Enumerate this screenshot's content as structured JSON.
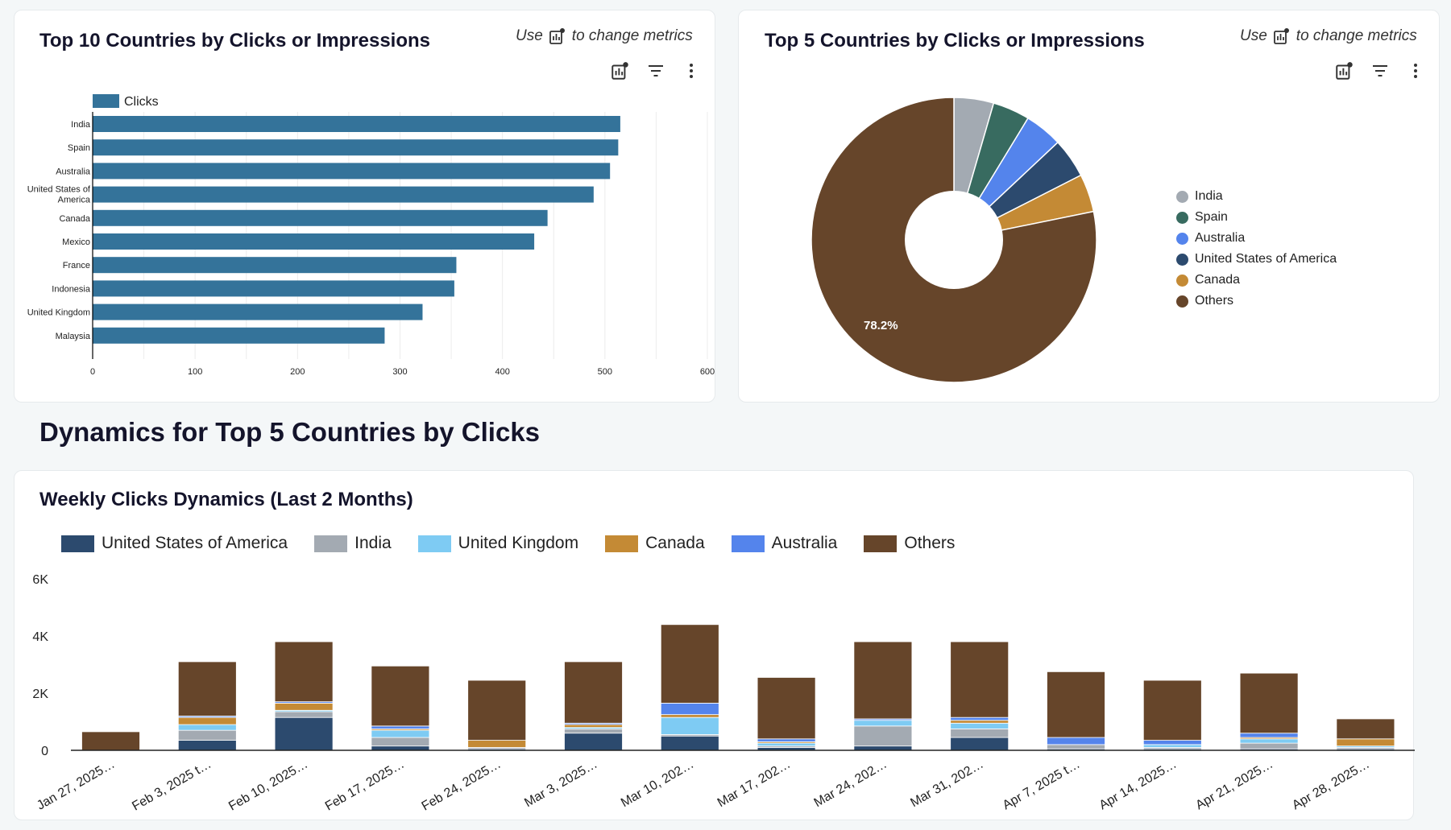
{
  "top10": {
    "title": "Top 10 Countries by Clicks or Impressions",
    "hint_use": "Use",
    "hint_rest": "to change metrics",
    "legend_label": "Clicks",
    "color": "#34739a"
  },
  "top5": {
    "title": "Top 5 Countries by Clicks or Impressions",
    "hint_use": "Use",
    "hint_rest": "to change metrics",
    "others_label": "78.2%",
    "legend": [
      {
        "label": "India",
        "color": "#a3aab2"
      },
      {
        "label": "Spain",
        "color": "#386b60"
      },
      {
        "label": "Australia",
        "color": "#5484ec"
      },
      {
        "label": "United States of America",
        "color": "#2c4a6e"
      },
      {
        "label": "Canada",
        "color": "#c48a35"
      },
      {
        "label": "Others",
        "color": "#66452a"
      }
    ]
  },
  "section_title": "Dynamics for Top 5 Countries by Clicks",
  "weekly": {
    "title": "Weekly Clicks Dynamics (Last 2 Months)",
    "legend": [
      {
        "label": "United States of America",
        "color": "#2c4a6e"
      },
      {
        "label": "India",
        "color": "#a3aab2"
      },
      {
        "label": "United Kingdom",
        "color": "#7ecbf3"
      },
      {
        "label": "Canada",
        "color": "#c48a35"
      },
      {
        "label": "Australia",
        "color": "#5484ec"
      },
      {
        "label": "Others",
        "color": "#66452a"
      }
    ]
  },
  "chart_data": [
    {
      "type": "bar",
      "orientation": "horizontal",
      "title": "Top 10 Countries by Clicks or Impressions",
      "categories": [
        "India",
        "Spain",
        "Australia",
        "United States of America",
        "Canada",
        "Mexico",
        "France",
        "Indonesia",
        "United Kingdom",
        "Malaysia"
      ],
      "category_labels": [
        [
          "India"
        ],
        [
          "Spain"
        ],
        [
          "Australia"
        ],
        [
          "United States of",
          "America"
        ],
        [
          "Canada"
        ],
        [
          "Mexico"
        ],
        [
          "France"
        ],
        [
          "Indonesia"
        ],
        [
          "United Kingdom"
        ],
        [
          "Malaysia"
        ]
      ],
      "series": [
        {
          "name": "Clicks",
          "values": [
            515,
            513,
            505,
            489,
            444,
            431,
            355,
            353,
            322,
            285
          ]
        }
      ],
      "xlim": [
        0,
        600
      ],
      "xticks": [
        "0",
        "100",
        "200",
        "300",
        "400",
        "500",
        "600"
      ],
      "legend": "top-left",
      "grid": true
    },
    {
      "type": "pie",
      "donut": true,
      "title": "Top 5 Countries by Clicks or Impressions",
      "labels": [
        "India",
        "Spain",
        "Australia",
        "United States of America",
        "Canada",
        "Others"
      ],
      "values": [
        4.5,
        4.2,
        4.3,
        4.5,
        4.3,
        78.2
      ],
      "unit": "%",
      "legend": "right"
    },
    {
      "type": "bar",
      "stacked": true,
      "title": "Weekly Clicks Dynamics (Last 2 Months)",
      "categories": [
        "Jan 27, 2025…",
        "Feb 3, 2025 t…",
        "Feb 10, 2025…",
        "Feb 17, 2025…",
        "Feb 24, 2025…",
        "Mar 3, 2025…",
        "Mar 10, 202…",
        "Mar 17, 202…",
        "Mar 24, 202…",
        "Mar 31, 202…",
        "Apr 7, 2025 t…",
        "Apr 14, 2025…",
        "Apr 21, 2025…",
        "Apr 28, 2025…"
      ],
      "series": [
        {
          "name": "United States of America",
          "values": [
            0,
            350,
            1150,
            150,
            50,
            600,
            500,
            100,
            150,
            450,
            50,
            50,
            50,
            50
          ]
        },
        {
          "name": "India",
          "values": [
            0,
            350,
            200,
            300,
            50,
            150,
            50,
            50,
            700,
            300,
            150,
            50,
            200,
            50
          ]
        },
        {
          "name": "United Kingdom",
          "values": [
            0,
            200,
            50,
            250,
            0,
            50,
            600,
            100,
            200,
            200,
            0,
            100,
            150,
            50
          ]
        },
        {
          "name": "Canada",
          "values": [
            0,
            250,
            250,
            50,
            250,
            100,
            100,
            50,
            0,
            100,
            0,
            0,
            50,
            250
          ]
        },
        {
          "name": "Australia",
          "values": [
            0,
            50,
            50,
            100,
            0,
            50,
            400,
            100,
            50,
            100,
            250,
            150,
            150,
            0
          ]
        },
        {
          "name": "Others",
          "values": [
            650,
            1900,
            2100,
            2100,
            2100,
            2150,
            2750,
            2150,
            2700,
            2650,
            2300,
            2100,
            2100,
            700
          ]
        }
      ],
      "ylim": [
        0,
        6000
      ],
      "yticks": [
        "0",
        "2K",
        "4K",
        "6K"
      ],
      "legend": "top",
      "grid": false
    }
  ]
}
